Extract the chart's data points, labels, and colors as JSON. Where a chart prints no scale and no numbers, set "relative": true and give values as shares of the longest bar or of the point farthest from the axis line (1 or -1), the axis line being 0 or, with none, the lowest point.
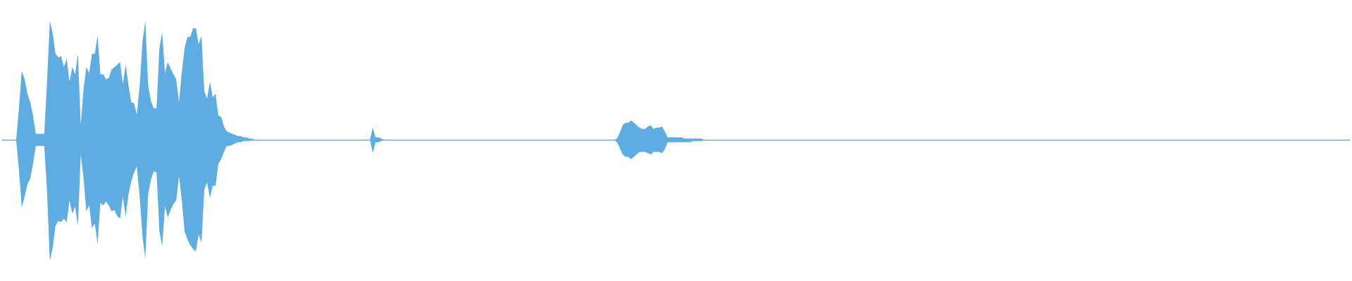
{
  "chart_data": {
    "type": "area",
    "relative": true,
    "categories": [
      null,
      null,
      null,
      null,
      null,
      null,
      null,
      null,
      null,
      null,
      null,
      null,
      null,
      null,
      null,
      null,
      null,
      null,
      null,
      null,
      null,
      null,
      null,
      null,
      null,
      null,
      null,
      null,
      null,
      null,
      null,
      null,
      null,
      null,
      null,
      null,
      null,
      null,
      null,
      null,
      null,
      null,
      null,
      null,
      null,
      null,
      null,
      null,
      null,
      null,
      null,
      null,
      null,
      null,
      null,
      null,
      null,
      null,
      null,
      null,
      null,
      null,
      null,
      null,
      null,
      null,
      null,
      null,
      null,
      null,
      null,
      null,
      null,
      null,
      null,
      null,
      null,
      null,
      null,
      null,
      null,
      null,
      null,
      null,
      null,
      null,
      null,
      null,
      null,
      null,
      null,
      null,
      null,
      null,
      null,
      null,
      null,
      null,
      null,
      null,
      null,
      null,
      null,
      null,
      null,
      null,
      null,
      null,
      null,
      null,
      null,
      null,
      null,
      null,
      null,
      null,
      null,
      null,
      null,
      null,
      null,
      null,
      null,
      null,
      null,
      null,
      null,
      null,
      null,
      null,
      null,
      null,
      null,
      null,
      null,
      null,
      null,
      null,
      null,
      null,
      null,
      null,
      null,
      null,
      null,
      null,
      null,
      null,
      null,
      null,
      null,
      null,
      null,
      null,
      null,
      null,
      null,
      null,
      null,
      null,
      null,
      null,
      null,
      null,
      null,
      null,
      null,
      null,
      null,
      null,
      null,
      null,
      null,
      null,
      null,
      null,
      null,
      null,
      null,
      null,
      null,
      null,
      null,
      null,
      null,
      null,
      null,
      null,
      null,
      null,
      null,
      null,
      null,
      null,
      null,
      null,
      null,
      null,
      null,
      null,
      null,
      null,
      null,
      null,
      null,
      null,
      null,
      null,
      null,
      null,
      null,
      null,
      null,
      null,
      null,
      null,
      null,
      null,
      null,
      null,
      null,
      null,
      null,
      null,
      null,
      null,
      null,
      null,
      null,
      null,
      null,
      null,
      null,
      null,
      null,
      null,
      null,
      null,
      null,
      null,
      null,
      null,
      null,
      null,
      null,
      null,
      null,
      null,
      null,
      null,
      null,
      null,
      null,
      null,
      null,
      null,
      null,
      null,
      null,
      null,
      null,
      null,
      null,
      null,
      null,
      null,
      null,
      null,
      null,
      null,
      null,
      null,
      null,
      null,
      null,
      null,
      null,
      null,
      null,
      null,
      null,
      null,
      null,
      null,
      null,
      null,
      null,
      null,
      null,
      null,
      null,
      null,
      null,
      null,
      null,
      null,
      null,
      null,
      null,
      null,
      null,
      null,
      null,
      null,
      null,
      null,
      null,
      null,
      null,
      null,
      null,
      null,
      null,
      null,
      null,
      null,
      null,
      null,
      null,
      null,
      null,
      null,
      null,
      null,
      null,
      null,
      null,
      null,
      null,
      null,
      null,
      null,
      null,
      null,
      null,
      null,
      null,
      null,
      null,
      null,
      null,
      null,
      null,
      null,
      null,
      null,
      null,
      null,
      null,
      null,
      null,
      null,
      null,
      null,
      null,
      null,
      null,
      null,
      null,
      null,
      null,
      null,
      null,
      null,
      null,
      null,
      null,
      null,
      null,
      null,
      null,
      null,
      null,
      null,
      null,
      null,
      null,
      null,
      null,
      null,
      null,
      null,
      null,
      null,
      null,
      null,
      null,
      null,
      null,
      null,
      null,
      null,
      null,
      null,
      null,
      null,
      null,
      null,
      null,
      null,
      null,
      null,
      null,
      null,
      null,
      null,
      null,
      null,
      null,
      null,
      null,
      null,
      null,
      null,
      null,
      null,
      null,
      null,
      null,
      null,
      null,
      null,
      null,
      null,
      null,
      null,
      null,
      null,
      null,
      null,
      null,
      null,
      null,
      null,
      null,
      null,
      null,
      null,
      null,
      null,
      null,
      null,
      null,
      null,
      null,
      null,
      null,
      null,
      null,
      null,
      null,
      null,
      null,
      null,
      null,
      null,
      null,
      null,
      null,
      null,
      null,
      null,
      null,
      null,
      null,
      null,
      null,
      null,
      null,
      null,
      null,
      null,
      null,
      null,
      null,
      null,
      null,
      null,
      null,
      null,
      null
    ],
    "series": [
      {
        "color": "#5dade2",
        "values": [
          0,
          0,
          0,
          0,
          0,
          0,
          0.26,
          0.57,
          0.5,
          0.38,
          0.31,
          0.2,
          0.05,
          0.05,
          0.05,
          0.05,
          0.48,
          0.98,
          0.88,
          0.71,
          0.68,
          0.69,
          0.6,
          0.67,
          0.48,
          0.6,
          0.54,
          0.71,
          0.12,
          0.42,
          0.6,
          0.55,
          0.71,
          0.71,
          0.86,
          0.54,
          0.54,
          0.5,
          0.51,
          0.58,
          0.6,
          0.62,
          0.64,
          0.46,
          0.62,
          0.45,
          0.31,
          0.3,
          0.21,
          0.45,
          0.81,
          0.98,
          0.45,
          0.32,
          0.26,
          0.26,
          0.75,
          0.89,
          0.55,
          0.64,
          0.59,
          0.54,
          0.5,
          0.31,
          0.56,
          0.76,
          0.85,
          0.85,
          0.92,
          0.92,
          0.79,
          0.86,
          0.4,
          0.34,
          0.48,
          0.35,
          0.38,
          0.2,
          0.19,
          0.11,
          0.07,
          0.06,
          0.05,
          0.04,
          0.03,
          0.03,
          0.02,
          0.02,
          0.01,
          0.01,
          0,
          0,
          0,
          0,
          0,
          0,
          0,
          0,
          0,
          0,
          0,
          0,
          0,
          0,
          0,
          0,
          0,
          0,
          0,
          0,
          0,
          0,
          0,
          0,
          0,
          0,
          0,
          0,
          0,
          0,
          0,
          0,
          0,
          0,
          0,
          0,
          0,
          0,
          0,
          0,
          0,
          0,
          0.1,
          0.02,
          0.02,
          0.01,
          0,
          0,
          0,
          0,
          0,
          0,
          0,
          0,
          0,
          0,
          0,
          0,
          0,
          0,
          0,
          0,
          0,
          0,
          0,
          0,
          0,
          0,
          0,
          0,
          0,
          0,
          0,
          0,
          0,
          0,
          0,
          0,
          0,
          0,
          0,
          0,
          0,
          0,
          0,
          0,
          0,
          0,
          0,
          0,
          0,
          0,
          0,
          0,
          0,
          0,
          0,
          0,
          0,
          0,
          0,
          0,
          0,
          0,
          0,
          0,
          0,
          0,
          0,
          0,
          0,
          0,
          0,
          0,
          0,
          0,
          0,
          0,
          0,
          0,
          0,
          0,
          0,
          0,
          0,
          0,
          0,
          0,
          0,
          0.01,
          0.06,
          0.12,
          0.14,
          0.14,
          0.16,
          0.14,
          0.12,
          0.1,
          0.09,
          0.09,
          0.11,
          0.12,
          0.09,
          0.1,
          0.1,
          0.11,
          0.07,
          0.02,
          0.02,
          0.02,
          0.02,
          0.02,
          0.02,
          0.01,
          0.01,
          0.01,
          0.01,
          0.01,
          0.01,
          0.01,
          0,
          0,
          0,
          0,
          0,
          0,
          0,
          0,
          0,
          0,
          0,
          0,
          0,
          0,
          0,
          0,
          0,
          0,
          0,
          0,
          0,
          0,
          0,
          0,
          0,
          0,
          0,
          0,
          0,
          0,
          0,
          0,
          0,
          0,
          0,
          0,
          0,
          0,
          0,
          0,
          0,
          0,
          0,
          0,
          0,
          0,
          0,
          0,
          0,
          0,
          0,
          0,
          0,
          0,
          0,
          0,
          0,
          0,
          0,
          0,
          0,
          0,
          0,
          0,
          0,
          0,
          0,
          0,
          0,
          0,
          0,
          0,
          0,
          0,
          0,
          0,
          0,
          0,
          0,
          0,
          0,
          0,
          0,
          0,
          0,
          0,
          0,
          0,
          0,
          0,
          0,
          0,
          0,
          0,
          0,
          0,
          0,
          0,
          0,
          0,
          0,
          0,
          0,
          0,
          0,
          0,
          0,
          0,
          0,
          0,
          0,
          0,
          0,
          0,
          0,
          0,
          0,
          0,
          0,
          0,
          0,
          0,
          0,
          0,
          0,
          0,
          0,
          0,
          0,
          0,
          0,
          0,
          0,
          0,
          0,
          0,
          0,
          0,
          0,
          0,
          0,
          0,
          0,
          0,
          0,
          0,
          0,
          0,
          0,
          0,
          0,
          0,
          0,
          0,
          0,
          0,
          0,
          0,
          0,
          0,
          0,
          0,
          0,
          0,
          0,
          0,
          0,
          0,
          0,
          0,
          0,
          0,
          0,
          0,
          0,
          0,
          0,
          0,
          0,
          0,
          0,
          0,
          0,
          0,
          0,
          0,
          0,
          0,
          0,
          0,
          0,
          0,
          0,
          0,
          0,
          0,
          0,
          0,
          0,
          0,
          0,
          0,
          0,
          0,
          0,
          0,
          0,
          0,
          0,
          0,
          0,
          0,
          0,
          0,
          0,
          0,
          0,
          0,
          0,
          0,
          0,
          0,
          0,
          0,
          0,
          0,
          0,
          0,
          0,
          0,
          0
        ]
      },
      {
        "color": "#5eade2",
        "values": [
          0,
          0,
          0,
          0,
          0,
          0,
          -0.25,
          -0.56,
          -0.47,
          -0.37,
          -0.32,
          -0.2,
          -0.05,
          -0.05,
          -0.05,
          -0.05,
          -0.43,
          -1,
          -0.89,
          -0.71,
          -0.67,
          -0.68,
          -0.65,
          -0.68,
          -0.5,
          -0.61,
          -0.55,
          -0.71,
          -0.12,
          -0.32,
          -0.59,
          -0.54,
          -0.73,
          -0.69,
          -0.86,
          -0.52,
          -0.54,
          -0.51,
          -0.54,
          -0.59,
          -0.58,
          -0.63,
          -0.65,
          -0.47,
          -0.63,
          -0.45,
          -0.34,
          -0.27,
          -0.22,
          -0.47,
          -0.8,
          -0.98,
          -0.45,
          -0.33,
          -0.26,
          -0.27,
          -0.75,
          -0.88,
          -0.55,
          -0.64,
          -0.58,
          -0.53,
          -0.5,
          -0.3,
          -0.5,
          -0.76,
          -0.82,
          -0.87,
          -0.9,
          -0.92,
          -0.78,
          -0.85,
          -0.41,
          -0.35,
          -0.48,
          -0.38,
          -0.38,
          -0.2,
          -0.16,
          -0.1,
          -0.05,
          -0.05,
          -0.04,
          -0.03,
          -0.02,
          -0.02,
          -0.01,
          -0.01,
          -0.01,
          0,
          0,
          0,
          0,
          0,
          0,
          0,
          0,
          0,
          0,
          0,
          0,
          0,
          0,
          0,
          0,
          0,
          0,
          0,
          0,
          0,
          0,
          0,
          0,
          0,
          0,
          0,
          0,
          0,
          0,
          0,
          0,
          0,
          0,
          0,
          0,
          0,
          0,
          0,
          0,
          0,
          0,
          0,
          -0.11,
          -0.02,
          -0.02,
          -0.01,
          0,
          0,
          0,
          0,
          0,
          0,
          0,
          0,
          0,
          0,
          0,
          0,
          0,
          0,
          0,
          0,
          0,
          0,
          0,
          0,
          0,
          0,
          0,
          0,
          0,
          0,
          0,
          0,
          0,
          0,
          0,
          0,
          0,
          0,
          0,
          0,
          0,
          0,
          0,
          0,
          0,
          0,
          0,
          0,
          0,
          0,
          0,
          0,
          0,
          0,
          0,
          0,
          0,
          0,
          0,
          0,
          0,
          0,
          0,
          0,
          0,
          0,
          0,
          0,
          0,
          0,
          0,
          0,
          0,
          0,
          0,
          0,
          0,
          0,
          0,
          0,
          0,
          0,
          0,
          0,
          0,
          0,
          0,
          -0.02,
          -0.07,
          -0.12,
          -0.14,
          -0.14,
          -0.16,
          -0.14,
          -0.12,
          -0.1,
          -0.1,
          -0.1,
          -0.11,
          -0.12,
          -0.1,
          -0.1,
          -0.1,
          -0.11,
          -0.08,
          -0.02,
          -0.02,
          -0.02,
          -0.02,
          -0.02,
          -0.02,
          -0.02,
          -0.02,
          -0.02,
          -0.01,
          -0.01,
          -0.01,
          -0.01,
          0,
          0,
          0,
          0,
          0,
          0,
          0,
          0,
          0,
          0,
          0,
          0,
          0,
          0,
          0,
          0,
          0,
          0,
          0,
          0,
          0,
          0,
          0,
          0,
          0,
          0,
          0,
          0,
          0,
          0,
          0,
          0,
          0,
          0,
          0,
          0,
          0,
          0,
          0,
          0,
          0,
          0,
          0,
          0,
          0,
          0,
          0,
          0,
          0,
          0,
          0,
          0,
          0,
          0,
          0,
          0,
          0,
          0,
          0,
          0,
          0,
          0,
          0,
          0,
          0,
          0,
          0,
          0,
          0,
          0,
          0,
          0,
          0,
          0,
          0,
          0,
          0,
          0,
          0,
          0,
          0,
          0,
          0,
          0,
          0,
          0,
          0,
          0,
          0,
          0,
          0,
          0,
          0,
          0,
          0,
          0,
          0,
          0,
          0,
          0,
          0,
          0,
          0,
          0,
          0,
          0,
          0,
          0,
          0,
          0,
          0,
          0,
          0,
          0,
          0,
          0,
          0,
          0,
          0,
          0,
          0,
          0,
          0,
          0,
          0,
          0,
          0,
          0,
          0,
          0,
          0,
          0,
          0,
          0,
          0,
          0,
          0,
          0,
          0,
          0,
          0,
          0,
          0,
          0,
          0,
          0,
          0,
          0,
          0,
          0,
          0,
          0,
          0,
          0,
          0,
          0,
          0,
          0,
          0,
          0,
          0,
          0,
          0,
          0,
          0,
          0,
          0,
          0,
          0,
          0,
          0,
          0,
          0,
          0,
          0,
          0,
          0,
          0,
          0,
          0,
          0,
          0,
          0,
          0,
          0,
          0,
          0,
          0,
          0,
          0,
          0,
          0,
          0,
          0,
          0,
          0,
          0,
          0,
          0,
          0,
          0,
          0,
          0,
          0,
          0,
          0,
          0,
          0,
          0,
          0,
          0,
          0,
          0,
          0,
          0,
          0,
          0,
          0,
          0,
          0,
          0,
          0,
          0,
          0,
          0,
          0,
          0,
          0,
          0,
          0,
          0
        ]
      }
    ]
  }
}
